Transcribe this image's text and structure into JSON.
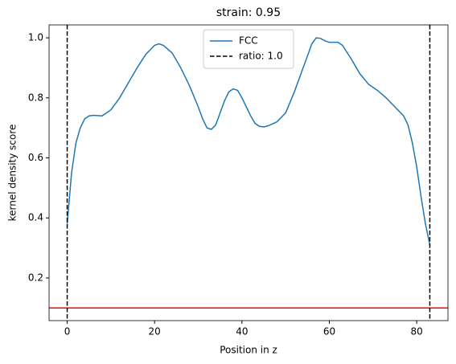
{
  "chart_data": {
    "type": "line",
    "title": "strain: 0.95",
    "x_label": "Position in z",
    "y_label": "kernel density score",
    "series": [
      {
        "name": "FCC",
        "color": "#1f77b4",
        "x": [
          0,
          1,
          2,
          3,
          4,
          5,
          6,
          8,
          10,
          12,
          14,
          16,
          18,
          20,
          21,
          22,
          24,
          26,
          28,
          30,
          31,
          32,
          33,
          34,
          35,
          36,
          37,
          38,
          39,
          40,
          41,
          42,
          43,
          44,
          45,
          46,
          48,
          50,
          52,
          54,
          56,
          57,
          58,
          59,
          60,
          62,
          63,
          65,
          67,
          69,
          71,
          73,
          75,
          77,
          78,
          79,
          80,
          81,
          82,
          83
        ],
        "values": [
          0.38,
          0.55,
          0.65,
          0.7,
          0.73,
          0.74,
          0.742,
          0.74,
          0.76,
          0.8,
          0.85,
          0.9,
          0.945,
          0.975,
          0.98,
          0.975,
          0.95,
          0.9,
          0.84,
          0.77,
          0.73,
          0.7,
          0.695,
          0.71,
          0.75,
          0.79,
          0.82,
          0.83,
          0.825,
          0.8,
          0.77,
          0.74,
          0.715,
          0.705,
          0.703,
          0.707,
          0.72,
          0.75,
          0.82,
          0.9,
          0.98,
          1.0,
          0.998,
          0.99,
          0.985,
          0.985,
          0.975,
          0.93,
          0.88,
          0.845,
          0.825,
          0.8,
          0.77,
          0.74,
          0.71,
          0.65,
          0.57,
          0.47,
          0.38,
          0.31
        ]
      }
    ],
    "vlines": {
      "name": "ratio: 1.0",
      "color": "#000000",
      "dashed": true,
      "x": [
        0,
        83
      ]
    },
    "hlines": [
      {
        "value": 0.1,
        "color": "#ff0000"
      }
    ],
    "xlim": [
      -4.15,
      87.15
    ],
    "ylim": [
      0.058,
      1.043
    ],
    "xticks": [
      0,
      20,
      40,
      60,
      80
    ],
    "yticks": [
      0.2,
      0.4,
      0.6,
      0.8,
      {
        "value": 1,
        "label": "1.0"
      }
    ],
    "legend": "upper center"
  }
}
